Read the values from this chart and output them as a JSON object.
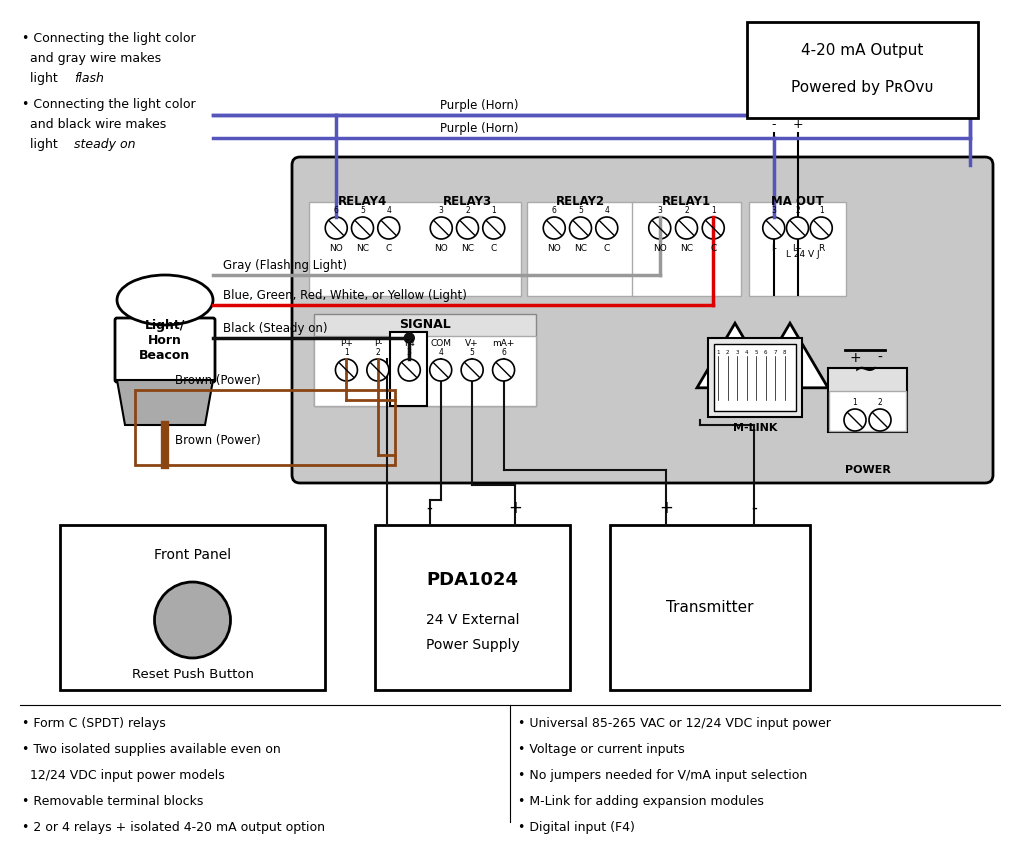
{
  "bg": "#ffffff",
  "purple": "#5555bb",
  "gray_wire": "#999999",
  "red_wire": "#dd0000",
  "black_wire": "#111111",
  "brown_wire": "#8B4513",
  "device_bg": "#c8c8c8",
  "relay_bg": "#e0e0e0",
  "white": "#ffffff",
  "top_bullets": [
    "• Connecting the light color",
    "  and gray wire makes",
    "  light |flash|",
    "• Connecting the light color",
    "  and black wire makes",
    "  light |steady on|"
  ],
  "bottom_left_bullets": [
    "• Form C (SPDT) relays",
    "• Two isolated supplies available even on",
    "  12/24 VDC input power models",
    "• Removable terminal blocks",
    "• 2 or 4 relays + isolated 4-20 mA output option"
  ],
  "bottom_right_bullets": [
    "• Universal 85-265 VAC or 12/24 VDC input power",
    "• Voltage or current inputs",
    "• No jumpers needed for V/mA input selection",
    "• M-Link for adding expansion modules",
    "• Digital input (F4)"
  ]
}
